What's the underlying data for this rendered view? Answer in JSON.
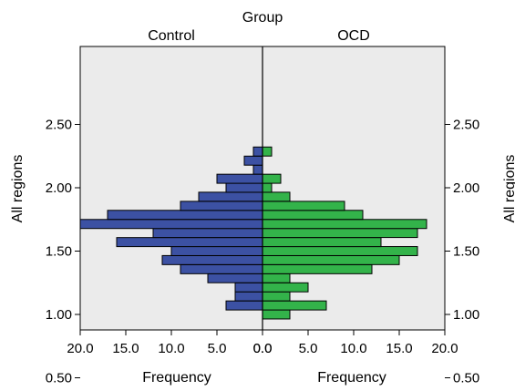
{
  "chart_data": {
    "type": "bar",
    "orientation": "horizontal-back-to-back",
    "title": "Group",
    "panels": [
      "Control",
      "OCD"
    ],
    "xlabel": "Frequency",
    "ylabel": "All regions",
    "ylim": [
      0.4,
      2.65
    ],
    "xlim": [
      0,
      20.0
    ],
    "y_ticks": [
      "0.50",
      "1.00",
      "1.50",
      "2.00",
      "2.50"
    ],
    "x_ticks": [
      "20.0",
      "15.0",
      "10.0",
      "5.0",
      "0.0",
      "0.0",
      "5.0",
      "10.0",
      "15.0",
      "20.0"
    ],
    "bin_width": 0.0714,
    "bin_centers": [
      1.0,
      1.071,
      1.143,
      1.214,
      1.286,
      1.357,
      1.429,
      1.5,
      1.571,
      1.643,
      1.714,
      1.786,
      1.857,
      1.929,
      2.0,
      2.071,
      2.143,
      2.214,
      2.286,
      2.357,
      2.429
    ],
    "series": [
      {
        "name": "Control",
        "color": "#3c51a3",
        "values": [
          0,
          4,
          3,
          3,
          6,
          9,
          11,
          10,
          16,
          12,
          20,
          17,
          9,
          7,
          4,
          5,
          1,
          2,
          1,
          0,
          0
        ]
      },
      {
        "name": "OCD",
        "color": "#33b34a",
        "values": [
          3,
          7,
          3,
          5,
          3,
          12,
          15,
          17,
          13,
          17,
          18,
          11,
          9,
          3,
          1,
          2,
          0,
          0,
          1,
          0,
          0
        ]
      }
    ],
    "plot_background": "#ebebeb",
    "grid": false
  }
}
